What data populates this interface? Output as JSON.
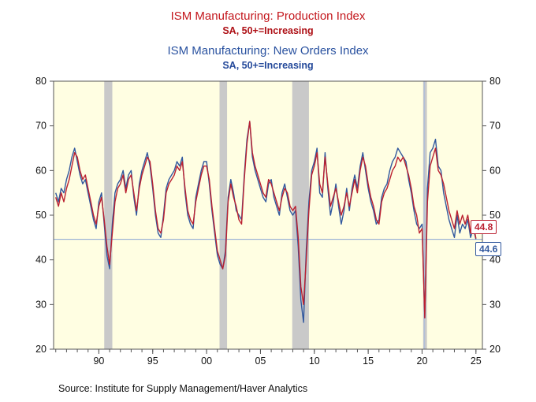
{
  "titles": {
    "line1": "ISM Manufacturing: Production Index",
    "line1_sub": "SA, 50+=Increasing",
    "line2": "ISM Manufacturing: New Orders Index",
    "line2_sub": "SA, 50+=Increasing"
  },
  "callouts": {
    "production_last": "44.8",
    "new_orders_last": "44.6"
  },
  "source": "Source:  Institute for Supply Management/Haver Analytics",
  "colors": {
    "production": "#bb2030",
    "new_orders": "#31589e",
    "plot_bg": "#fffee2",
    "recession_band": "#c9c9c9",
    "ref_line": "#8aa4d4",
    "v_line": "#a8bcde",
    "axis": "#555555",
    "tick_text": "#111111"
  },
  "chart_data": {
    "type": "line",
    "title": "ISM Manufacturing: Production Index / New Orders Index (SA, 50+=Increasing)",
    "xlabel": "",
    "ylabel": "",
    "xlim": [
      1985.8,
      2025.6
    ],
    "ylim": [
      20,
      80
    ],
    "yticks": [
      20,
      30,
      40,
      50,
      60,
      70,
      80
    ],
    "xticks": {
      "values": [
        1990,
        1995,
        2000,
        2005,
        2010,
        2015,
        2020,
        2025
      ],
      "labels": [
        "90",
        "95",
        "00",
        "05",
        "10",
        "15",
        "20",
        "25"
      ]
    },
    "minor_xticks_from": 1986,
    "minor_xticks_to": 2025,
    "grid": false,
    "legend_position": "none",
    "recessions": [
      [
        1990.5,
        1991.25
      ],
      [
        2001.2,
        2001.9
      ],
      [
        2007.95,
        2009.5
      ],
      [
        2020.1,
        2020.45
      ]
    ],
    "hline": 44.6,
    "vline": 2020.2,
    "x_start": 1986.0,
    "x_step": 0.25,
    "series": [
      {
        "name": "ISM Manufacturing: New Orders Index",
        "color": "#31589e",
        "last_value": 44.6,
        "values": [
          55,
          53,
          56,
          55,
          58,
          60,
          63,
          65,
          62,
          59,
          57,
          58,
          55,
          52,
          49,
          47,
          53,
          55,
          48,
          41,
          38,
          48,
          55,
          57,
          58,
          60,
          56,
          59,
          60,
          54,
          50,
          57,
          60,
          62,
          64,
          61,
          56,
          50,
          46,
          45,
          50,
          56,
          58,
          59,
          60,
          62,
          61,
          63,
          55,
          50,
          48,
          47,
          54,
          57,
          60,
          62,
          62,
          57,
          51,
          46,
          41,
          39,
          38,
          42,
          54,
          58,
          55,
          51,
          50,
          49,
          59,
          67,
          71,
          63,
          60,
          58,
          56,
          54,
          53,
          57,
          58,
          54,
          52,
          50,
          55,
          57,
          54,
          51,
          50,
          51,
          43,
          31,
          26,
          42,
          53,
          60,
          62,
          65,
          55,
          54,
          64,
          56,
          50,
          53,
          57,
          52,
          48,
          51,
          56,
          51,
          56,
          59,
          56,
          61,
          64,
          60,
          56,
          53,
          51,
          48,
          49,
          54,
          56,
          57,
          60,
          62,
          63,
          65,
          64,
          63,
          62,
          58,
          55,
          51,
          48,
          47,
          48,
          27,
          56,
          64,
          65,
          67,
          61,
          60,
          55,
          52,
          49,
          47,
          45,
          50,
          46,
          48,
          47,
          49,
          45,
          47,
          44.6
        ]
      },
      {
        "name": "ISM Manufacturing: Production Index",
        "color": "#bb2030",
        "last_value": 44.8,
        "values": [
          54,
          52,
          55,
          53,
          56,
          58,
          61,
          64,
          63,
          60,
          58,
          59,
          56,
          53,
          50,
          48,
          52,
          54,
          49,
          43,
          39,
          46,
          53,
          56,
          57,
          59,
          55,
          58,
          59,
          55,
          51,
          56,
          59,
          61,
          63,
          62,
          57,
          51,
          47,
          46,
          49,
          55,
          57,
          58,
          59,
          61,
          60,
          62,
          56,
          51,
          49,
          48,
          53,
          56,
          59,
          61,
          61,
          58,
          52,
          47,
          42,
          40,
          38,
          41,
          53,
          57,
          54,
          52,
          49,
          48,
          58,
          66,
          71,
          64,
          61,
          59,
          57,
          55,
          54,
          58,
          57,
          55,
          53,
          51,
          54,
          56,
          55,
          52,
          51,
          52,
          45,
          34,
          30,
          40,
          51,
          59,
          61,
          64,
          57,
          55,
          63,
          57,
          52,
          54,
          56,
          53,
          50,
          52,
          55,
          52,
          55,
          58,
          55,
          60,
          63,
          61,
          57,
          54,
          52,
          49,
          48,
          53,
          55,
          56,
          58,
          60,
          61,
          63,
          62,
          63,
          61,
          59,
          56,
          52,
          50,
          46,
          47,
          27,
          53,
          61,
          63,
          65,
          60,
          59,
          57,
          54,
          51,
          49,
          47,
          51,
          48,
          50,
          48,
          50,
          46,
          48,
          44.8
        ]
      }
    ]
  }
}
